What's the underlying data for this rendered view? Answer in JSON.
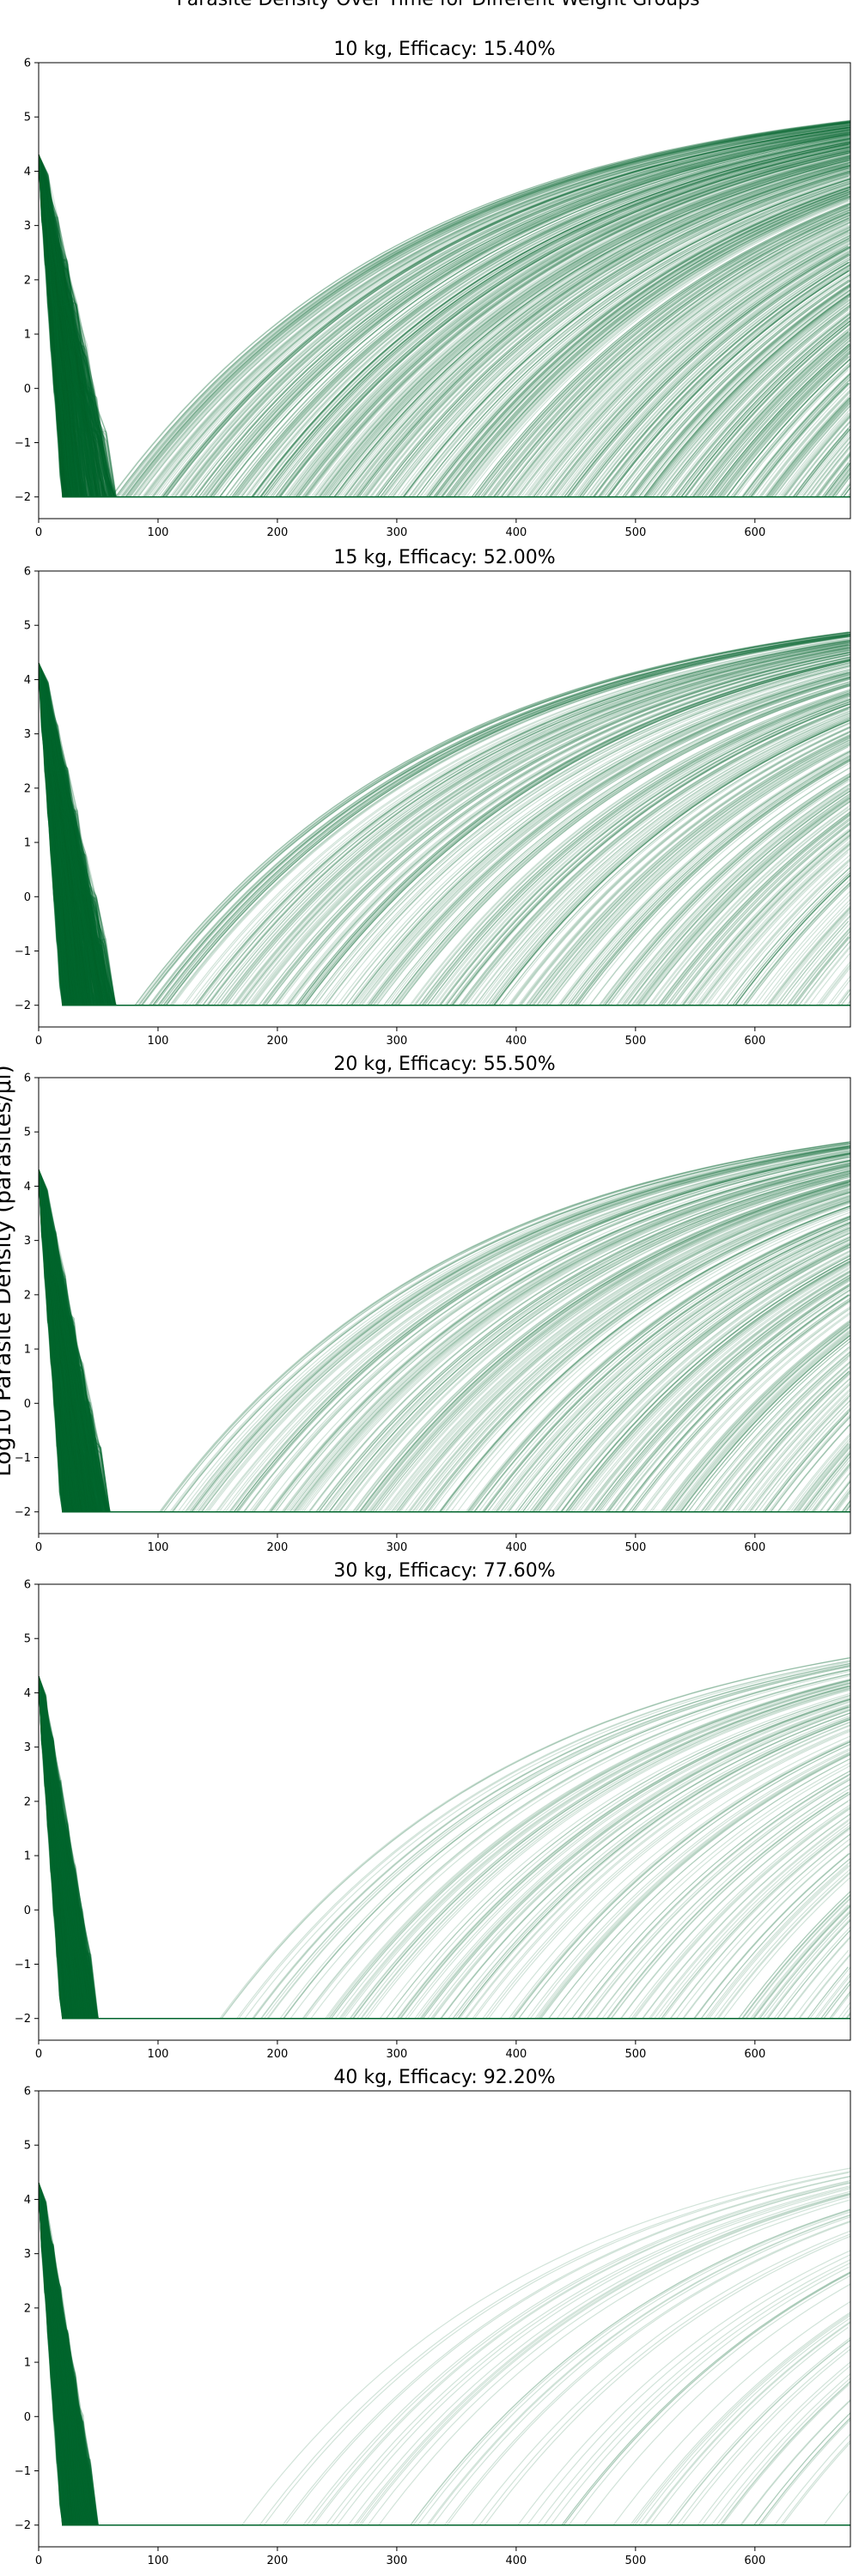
{
  "figure": {
    "suptitle": "Parasite Density Over Time for Different Weight Groups",
    "ylabel": "Log10 Parasite Density (parasites/μl)"
  },
  "line_color": "#00662e",
  "chart_data": [
    {
      "type": "line",
      "title": "10 kg, Efficacy: 15.40%",
      "xlim": [
        0,
        680
      ],
      "ylim": [
        -2.4,
        6
      ],
      "xticks": [
        0,
        100,
        200,
        300,
        400,
        500,
        600
      ],
      "yticks": [
        -2,
        -1,
        0,
        1,
        2,
        3,
        4,
        5,
        6
      ],
      "y_floor": -2,
      "y_start": 4.3,
      "y_plateau": 5.6,
      "clearance_day_range": [
        20,
        65
      ],
      "recrudescence_start_day_range": [
        60,
        700
      ],
      "fraction_recrudescent": 0.846,
      "series_count": 1000
    },
    {
      "type": "line",
      "title": "15 kg, Efficacy: 52.00%",
      "xlim": [
        0,
        680
      ],
      "ylim": [
        -2.4,
        6
      ],
      "xticks": [
        0,
        100,
        200,
        300,
        400,
        500,
        600
      ],
      "yticks": [
        -2,
        -1,
        0,
        1,
        2,
        3,
        4,
        5,
        6
      ],
      "y_floor": -2,
      "y_start": 4.3,
      "y_plateau": 5.6,
      "clearance_day_range": [
        20,
        65
      ],
      "recrudescence_start_day_range": [
        80,
        700
      ],
      "fraction_recrudescent": 0.48,
      "series_count": 1000
    },
    {
      "type": "line",
      "title": "20 kg, Efficacy: 55.50%",
      "xlim": [
        0,
        680
      ],
      "ylim": [
        -2.4,
        6
      ],
      "xticks": [
        0,
        100,
        200,
        300,
        400,
        500,
        600
      ],
      "yticks": [
        -2,
        -1,
        0,
        1,
        2,
        3,
        4,
        5,
        6
      ],
      "y_floor": -2,
      "y_start": 4.3,
      "y_plateau": 5.6,
      "clearance_day_range": [
        20,
        60
      ],
      "recrudescence_start_day_range": [
        100,
        700
      ],
      "fraction_recrudescent": 0.445,
      "series_count": 1000
    },
    {
      "type": "line",
      "title": "30 kg, Efficacy: 77.60%",
      "xlim": [
        0,
        680
      ],
      "ylim": [
        -2.4,
        6
      ],
      "xticks": [
        0,
        100,
        200,
        300,
        400,
        500,
        600
      ],
      "yticks": [
        -2,
        -1,
        0,
        1,
        2,
        3,
        4,
        5,
        6
      ],
      "y_floor": -2,
      "y_start": 4.3,
      "y_plateau": 5.6,
      "clearance_day_range": [
        20,
        50
      ],
      "recrudescence_start_day_range": [
        150,
        700
      ],
      "fraction_recrudescent": 0.224,
      "series_count": 1000
    },
    {
      "type": "line",
      "title": "40 kg, Efficacy: 92.20%",
      "xlim": [
        0,
        680
      ],
      "ylim": [
        -2.4,
        6
      ],
      "xticks": [
        0,
        100,
        200,
        300,
        400,
        500,
        600
      ],
      "yticks": [
        -2,
        -1,
        0,
        1,
        2,
        3,
        4,
        5,
        6
      ],
      "y_floor": -2,
      "y_start": 4.3,
      "y_plateau": 5.6,
      "clearance_day_range": [
        20,
        50
      ],
      "recrudescence_start_day_range": [
        170,
        700
      ],
      "fraction_recrudescent": 0.078,
      "series_count": 1000
    }
  ]
}
